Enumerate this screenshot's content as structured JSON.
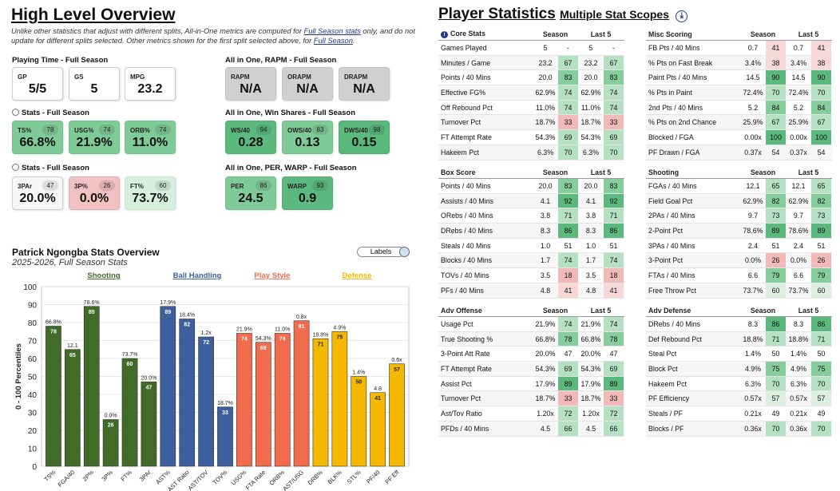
{
  "overview": {
    "title": "High Level Overview",
    "note_parts": [
      "Unlike other statistics that adjust with different splits, All-in-One metrics are computed for ",
      "Full Season stats",
      " only, and do not update for different splits selected. Other metrics shown for the first split selected above, for ",
      "Full Season",
      "."
    ],
    "sections": {
      "playing_time": "Playing Time - Full Season",
      "stats1": "Stats - Full Season",
      "stats2": "Stats - Full Season",
      "rapm": "All in One, RAPM - Full Season",
      "ws": "All in One, Win Shares - Full Season",
      "per": "All in One, PER, WARP - Full Season"
    },
    "cards": {
      "gp": {
        "label": "GP",
        "value": "5/5"
      },
      "gs": {
        "label": "GS",
        "value": "5"
      },
      "mpg": {
        "label": "MPG",
        "value": "23.2"
      },
      "ts": {
        "label": "TS%",
        "value": "66.8%",
        "pct": "78"
      },
      "usg": {
        "label": "USG%",
        "value": "21.9%",
        "pct": "74"
      },
      "orb": {
        "label": "ORB%",
        "value": "11.0%",
        "pct": "74"
      },
      "par3": {
        "label": "3PAr",
        "value": "20.0%",
        "pct": "47"
      },
      "p3": {
        "label": "3P%",
        "value": "0.0%",
        "pct": "26"
      },
      "ft": {
        "label": "FT%",
        "value": "73.7%",
        "pct": "60"
      },
      "rapm": {
        "label": "RAPM",
        "value": "N/A"
      },
      "orapm": {
        "label": "ORAPM",
        "value": "N/A"
      },
      "drapm": {
        "label": "DRAPM",
        "value": "N/A"
      },
      "ws40": {
        "label": "WS/40",
        "value": "0.28",
        "pct": "94"
      },
      "ows40": {
        "label": "OWS/40",
        "value": "0.13",
        "pct": "83"
      },
      "dws40": {
        "label": "DWS/40",
        "value": "0.15",
        "pct": "98"
      },
      "per": {
        "label": "PER",
        "value": "24.5",
        "pct": "86"
      },
      "warp": {
        "label": "WARP",
        "value": "0.9",
        "pct": "93"
      }
    }
  },
  "chart_header": {
    "title": "Patrick Ngongba Stats Overview",
    "subtitle": "2025-2026, Full Season Stats",
    "labels_button": "Labels"
  },
  "chart_data": {
    "type": "bar",
    "ylabel": "0 - 100 Percentiles",
    "ylim": [
      0,
      100
    ],
    "yticks": [
      0,
      10,
      20,
      30,
      40,
      50,
      60,
      70,
      80,
      90,
      100
    ],
    "groups": [
      {
        "name": "Shooting",
        "color": "#406b28"
      },
      {
        "name": "Ball Handling",
        "color": "#3d5f9e"
      },
      {
        "name": "Play Style",
        "color": "#f26b4c"
      },
      {
        "name": "Defense",
        "color": "#f5b800"
      }
    ],
    "bars": [
      {
        "cat": "TS%",
        "value": 78,
        "label": "66.8%",
        "group": 0
      },
      {
        "cat": "FGA/40",
        "value": 65,
        "label": "12.1",
        "group": 0
      },
      {
        "cat": "2P%",
        "value": 89,
        "label": "78.6%",
        "group": 0
      },
      {
        "cat": "3P%",
        "value": 26,
        "label": "0.0%",
        "group": 0
      },
      {
        "cat": "FT%",
        "value": 60,
        "label": "73.7%",
        "group": 0
      },
      {
        "cat": "3PAr",
        "value": 47,
        "label": "20.0%",
        "group": 0
      },
      {
        "cat": "AST%",
        "value": 89,
        "label": "17.9%",
        "group": 1
      },
      {
        "cat": "AST Ratio",
        "value": 82,
        "label": "18.4%",
        "group": 1
      },
      {
        "cat": "AST/TOV",
        "value": 72,
        "label": "1.2x",
        "group": 1
      },
      {
        "cat": "TOV%",
        "value": 33,
        "label": "18.7%",
        "group": 1
      },
      {
        "cat": "USG%",
        "value": 74,
        "label": "21.9%",
        "group": 2
      },
      {
        "cat": "FTA Rate",
        "value": 69,
        "label": "54.3%",
        "group": 2
      },
      {
        "cat": "ORB%",
        "value": 74,
        "label": "11.0%",
        "group": 2
      },
      {
        "cat": "AST/USG",
        "value": 81,
        "label": "0.8x",
        "group": 2
      },
      {
        "cat": "DRB%",
        "value": 71,
        "label": "18.8%",
        "group": 3
      },
      {
        "cat": "BLK%",
        "value": 75,
        "label": "4.9%",
        "group": 3
      },
      {
        "cat": "STL%",
        "value": 50,
        "label": "1.4%",
        "group": 3
      },
      {
        "cat": "PF/40",
        "value": 41,
        "label": "4.8",
        "group": 3
      },
      {
        "cat": "PF Eff",
        "value": 57,
        "label": "0.6x",
        "group": 3
      }
    ]
  },
  "player_stats": {
    "title": "Player Statistics",
    "subtitle": "Multiple Stat Scopes",
    "col_season": "Season",
    "col_last5": "Last 5",
    "tables": [
      {
        "title": "Core Stats",
        "info": "i",
        "rows": [
          [
            "Games Played",
            "5",
            "-",
            "5",
            "-"
          ],
          [
            "Minutes / Game",
            "23.2",
            "67",
            "23.2",
            "67"
          ],
          [
            "Points / 40 Mins",
            "20.0",
            "83",
            "20.0",
            "83"
          ],
          [
            "Effective FG%",
            "62.9%",
            "74",
            "62.9%",
            "74"
          ],
          [
            "Off Rebound Pct",
            "11.0%",
            "74",
            "11.0%",
            "74"
          ],
          [
            "Turnover Pct",
            "18.7%",
            "33",
            "18.7%",
            "33"
          ],
          [
            "FT Attempt Rate",
            "54.3%",
            "69",
            "54.3%",
            "69"
          ],
          [
            "Hakeem Pct",
            "6.3%",
            "70",
            "6.3%",
            "70"
          ]
        ]
      },
      {
        "title": "Misc Scoring",
        "rows": [
          [
            "FB Pts / 40 Mins",
            "0.7",
            "41",
            "0.7",
            "41"
          ],
          [
            "% Pts on Fast Break",
            "3.4%",
            "38",
            "3.4%",
            "38"
          ],
          [
            "Paint Pts / 40 Mins",
            "14.5",
            "90",
            "14.5",
            "90"
          ],
          [
            "% Pts in Paint",
            "72.4%",
            "70",
            "72.4%",
            "70"
          ],
          [
            "2nd Pts / 40 Mins",
            "5.2",
            "84",
            "5.2",
            "84"
          ],
          [
            "% Pts on 2nd Chance",
            "25.9%",
            "67",
            "25.9%",
            "67"
          ],
          [
            "Blocked / FGA",
            "0.00x",
            "100",
            "0.00x",
            "100"
          ],
          [
            "PF Drawn / FGA",
            "0.37x",
            "54",
            "0.37x",
            "54"
          ]
        ]
      },
      {
        "title": "Box Score",
        "rows": [
          [
            "Points / 40 Mins",
            "20.0",
            "83",
            "20.0",
            "83"
          ],
          [
            "Assists / 40 Mins",
            "4.1",
            "92",
            "4.1",
            "92"
          ],
          [
            "ORebs / 40 Mins",
            "3.8",
            "71",
            "3.8",
            "71"
          ],
          [
            "DRebs / 40 Mins",
            "8.3",
            "86",
            "8.3",
            "86"
          ],
          [
            "Steals / 40 Mins",
            "1.0",
            "51",
            "1.0",
            "51"
          ],
          [
            "Blocks / 40 Mins",
            "1.7",
            "74",
            "1.7",
            "74"
          ],
          [
            "TOVs / 40 Mins",
            "3.5",
            "18",
            "3.5",
            "18"
          ],
          [
            "PFs / 40 Mins",
            "4.8",
            "41",
            "4.8",
            "41"
          ]
        ]
      },
      {
        "title": "Shooting",
        "rows": [
          [
            "FGAs / 40 Mins",
            "12.1",
            "65",
            "12.1",
            "65"
          ],
          [
            "Field Goal Pct",
            "62.9%",
            "82",
            "62.9%",
            "82"
          ],
          [
            "2PAs / 40 Mins",
            "9.7",
            "73",
            "9.7",
            "73"
          ],
          [
            "2-Point Pct",
            "78.6%",
            "89",
            "78.6%",
            "89"
          ],
          [
            "3PAs / 40 Mins",
            "2.4",
            "51",
            "2.4",
            "51"
          ],
          [
            "3-Point Pct",
            "0.0%",
            "26",
            "0.0%",
            "26"
          ],
          [
            "FTAs / 40 Mins",
            "6.6",
            "79",
            "6.6",
            "79"
          ],
          [
            "Free Throw Pct",
            "73.7%",
            "60",
            "73.7%",
            "60"
          ]
        ]
      },
      {
        "title": "Adv Offense",
        "rows": [
          [
            "Usage Pct",
            "21.9%",
            "74",
            "21.9%",
            "74"
          ],
          [
            "True Shooting %",
            "66.8%",
            "78",
            "66.8%",
            "78"
          ],
          [
            "3-Point Att Rate",
            "20.0%",
            "47",
            "20.0%",
            "47"
          ],
          [
            "FT Attempt Rate",
            "54.3%",
            "69",
            "54.3%",
            "69"
          ],
          [
            "Assist Pct",
            "17.9%",
            "89",
            "17.9%",
            "89"
          ],
          [
            "Turnover Pct",
            "18.7%",
            "33",
            "18.7%",
            "33"
          ],
          [
            "Ast/Tov Ratio",
            "1.20x",
            "72",
            "1.20x",
            "72"
          ],
          [
            "PFDs / 40 Mins",
            "4.5",
            "66",
            "4.5",
            "66"
          ]
        ]
      },
      {
        "title": "Adv Defense",
        "rows": [
          [
            "DRebs / 40 Mins",
            "8.3",
            "86",
            "8.3",
            "86"
          ],
          [
            "Def Rebound Pct",
            "18.8%",
            "71",
            "18.8%",
            "71"
          ],
          [
            "Steal Pct",
            "1.4%",
            "50",
            "1.4%",
            "50"
          ],
          [
            "Block Pct",
            "4.9%",
            "75",
            "4.9%",
            "75"
          ],
          [
            "Hakeem Pct",
            "6.3%",
            "70",
            "6.3%",
            "70"
          ],
          [
            "PF Efficiency",
            "0.57x",
            "57",
            "0.57x",
            "57"
          ],
          [
            "Steals / PF",
            "0.21x",
            "49",
            "0.21x",
            "49"
          ],
          [
            "Blocks / PF",
            "0.36x",
            "70",
            "0.36x",
            "70"
          ]
        ]
      }
    ]
  }
}
